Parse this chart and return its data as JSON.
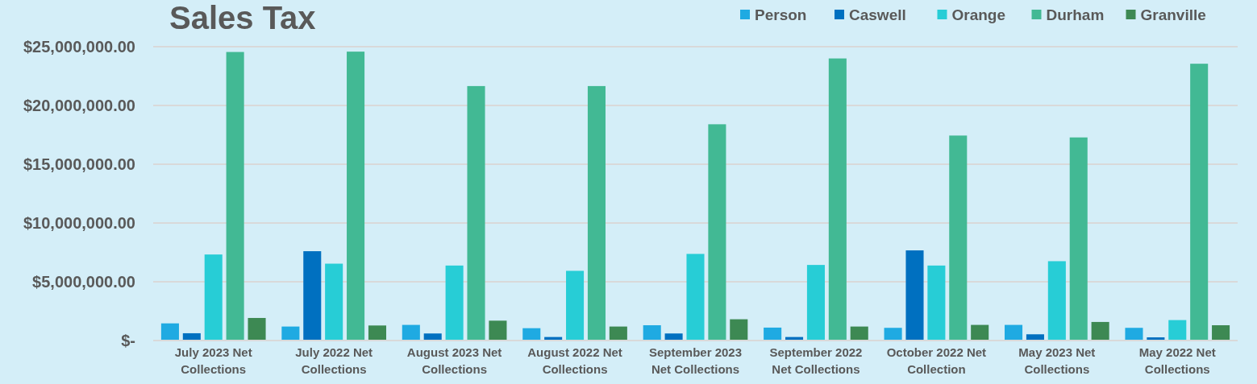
{
  "chart_data": {
    "type": "bar",
    "title": "Sales Tax",
    "categories": [
      "July 2023 Net Collections",
      "July 2022 Net Collections",
      "August 2023 Net Collections",
      "August 2022 Net Collections",
      "September 2023 Net Collections",
      "September 2022 Net Collections",
      "October 2022 Net Collection",
      "May 2023 Net Collections",
      "May 2022 Net Collections"
    ],
    "series": [
      {
        "name": "Person",
        "color": "#1faae2",
        "values": [
          1460000,
          1190000,
          1330000,
          1050000,
          1300000,
          1100000,
          1080000,
          1330000,
          1080000
        ]
      },
      {
        "name": "Caswell",
        "color": "#0070c0",
        "values": [
          620000,
          7600000,
          600000,
          300000,
          600000,
          300000,
          7670000,
          530000,
          270000
        ]
      },
      {
        "name": "Orange",
        "color": "#27cdd6",
        "values": [
          7320000,
          6540000,
          6380000,
          5930000,
          7370000,
          6430000,
          6380000,
          6750000,
          1740000
        ]
      },
      {
        "name": "Durham",
        "color": "#42b994",
        "values": [
          24550000,
          24580000,
          21650000,
          21650000,
          18400000,
          24000000,
          17440000,
          17280000,
          23550000
        ]
      },
      {
        "name": "Granville",
        "color": "#3d8953",
        "values": [
          1920000,
          1280000,
          1690000,
          1190000,
          1810000,
          1190000,
          1330000,
          1580000,
          1300000
        ]
      }
    ],
    "ylim": [
      0,
      25000000
    ],
    "yticks": [
      {
        "value": 0,
        "label": "$-"
      },
      {
        "value": 5000000,
        "label": "$5,000,000.00"
      },
      {
        "value": 10000000,
        "label": "$10,000,000.00"
      },
      {
        "value": 15000000,
        "label": "$15,000,000.00"
      },
      {
        "value": 20000000,
        "label": "$20,000,000.00"
      },
      {
        "value": 25000000,
        "label": "$25,000,000.00"
      }
    ],
    "grid": "y",
    "legend": "top right"
  }
}
